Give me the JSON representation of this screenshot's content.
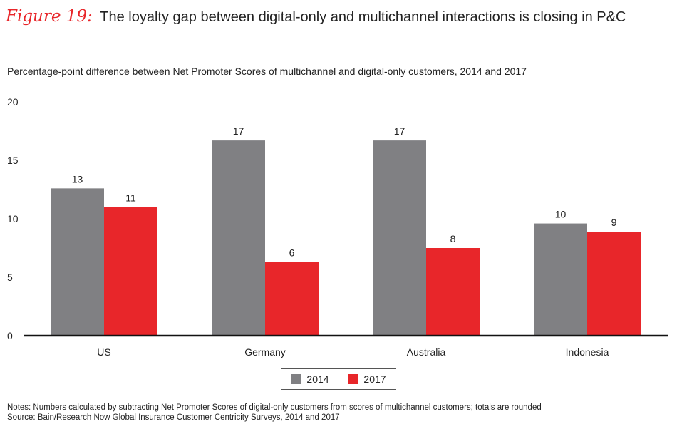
{
  "header": {
    "figure_label": "Figure 19:",
    "title": "The loyalty gap between digital-only and multichannel interactions is closing in P&C"
  },
  "subtitle": "Percentage-point difference between Net Promoter Scores of multichannel and digital-only customers, 2014 and 2017",
  "colors": {
    "2014": "#808083",
    "2017": "#e8262a",
    "accent": "#e8262a"
  },
  "chart_data": {
    "type": "bar",
    "categories": [
      "US",
      "Germany",
      "Australia",
      "Indonesia"
    ],
    "series": [
      {
        "name": "2014",
        "values": [
          12.6,
          16.7,
          16.7,
          9.6
        ],
        "labels": [
          "13",
          "17",
          "17",
          "10"
        ]
      },
      {
        "name": "2017",
        "values": [
          11.0,
          6.3,
          7.5,
          8.9
        ],
        "labels": [
          "11",
          "6",
          "8",
          "9"
        ]
      }
    ],
    "yticks": [
      "0",
      "5",
      "10",
      "15",
      "20"
    ],
    "ylim": [
      0,
      20
    ],
    "grid": false,
    "legend_position": "bottom-center"
  },
  "notes": {
    "line1": "Notes: Numbers calculated by subtracting Net Promoter Scores of digital-only customers from scores of multichannel customers; totals are rounded",
    "line2": "Source: Bain/Research Now Global Insurance Customer Centricity Surveys, 2014 and 2017"
  }
}
